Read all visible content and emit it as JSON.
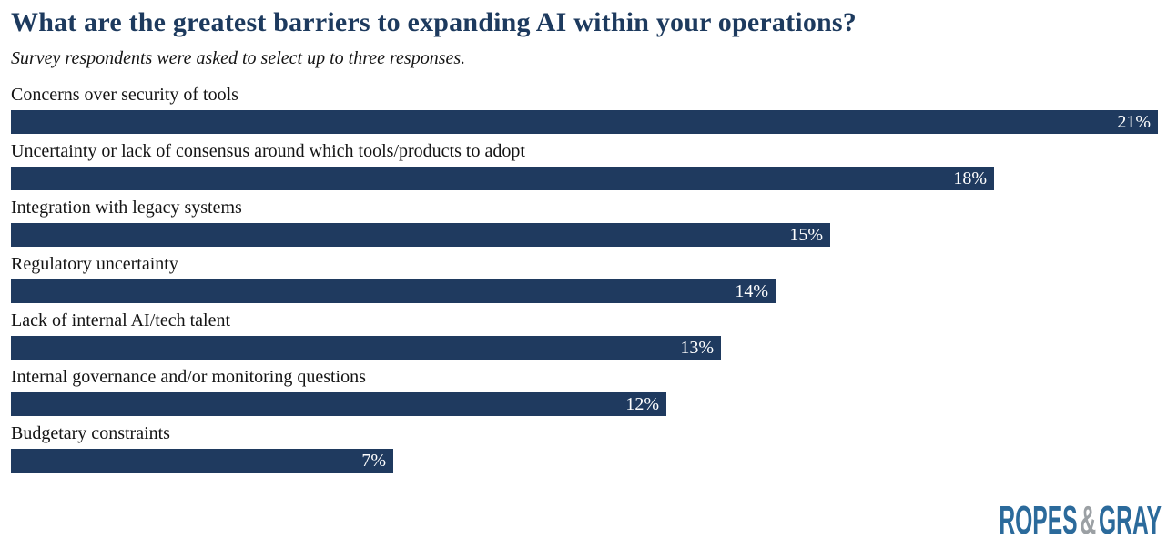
{
  "chart_data": {
    "type": "bar",
    "orientation": "horizontal",
    "title": "What are the greatest barriers to expanding AI within your operations?",
    "subtitle": "Survey respondents were asked to select up to three responses.",
    "categories": [
      "Concerns over security of tools",
      "Uncertainty or lack of consensus around which tools/products to adopt",
      "Integration with legacy systems",
      "Regulatory uncertainty",
      "Lack of internal AI/tech talent",
      "Internal governance and/or monitoring questions",
      "Budgetary constraints"
    ],
    "values": [
      21,
      18,
      15,
      14,
      13,
      12,
      7
    ],
    "value_suffix": "%",
    "xlim": [
      0,
      21
    ],
    "grid": false,
    "legend": false,
    "label_position": "inside-end",
    "bar_color": "#1F3A5F",
    "value_label_color": "#FFFFFF"
  },
  "branding": {
    "logo_part1": "ROPES",
    "logo_amp": "&",
    "logo_part2": "GRAY",
    "logo_blue": "#2B6A9B",
    "logo_gray": "#9BA0A4"
  },
  "colors": {
    "title": "#1D3A5E",
    "text": "#141414",
    "background": "#FFFFFF"
  }
}
